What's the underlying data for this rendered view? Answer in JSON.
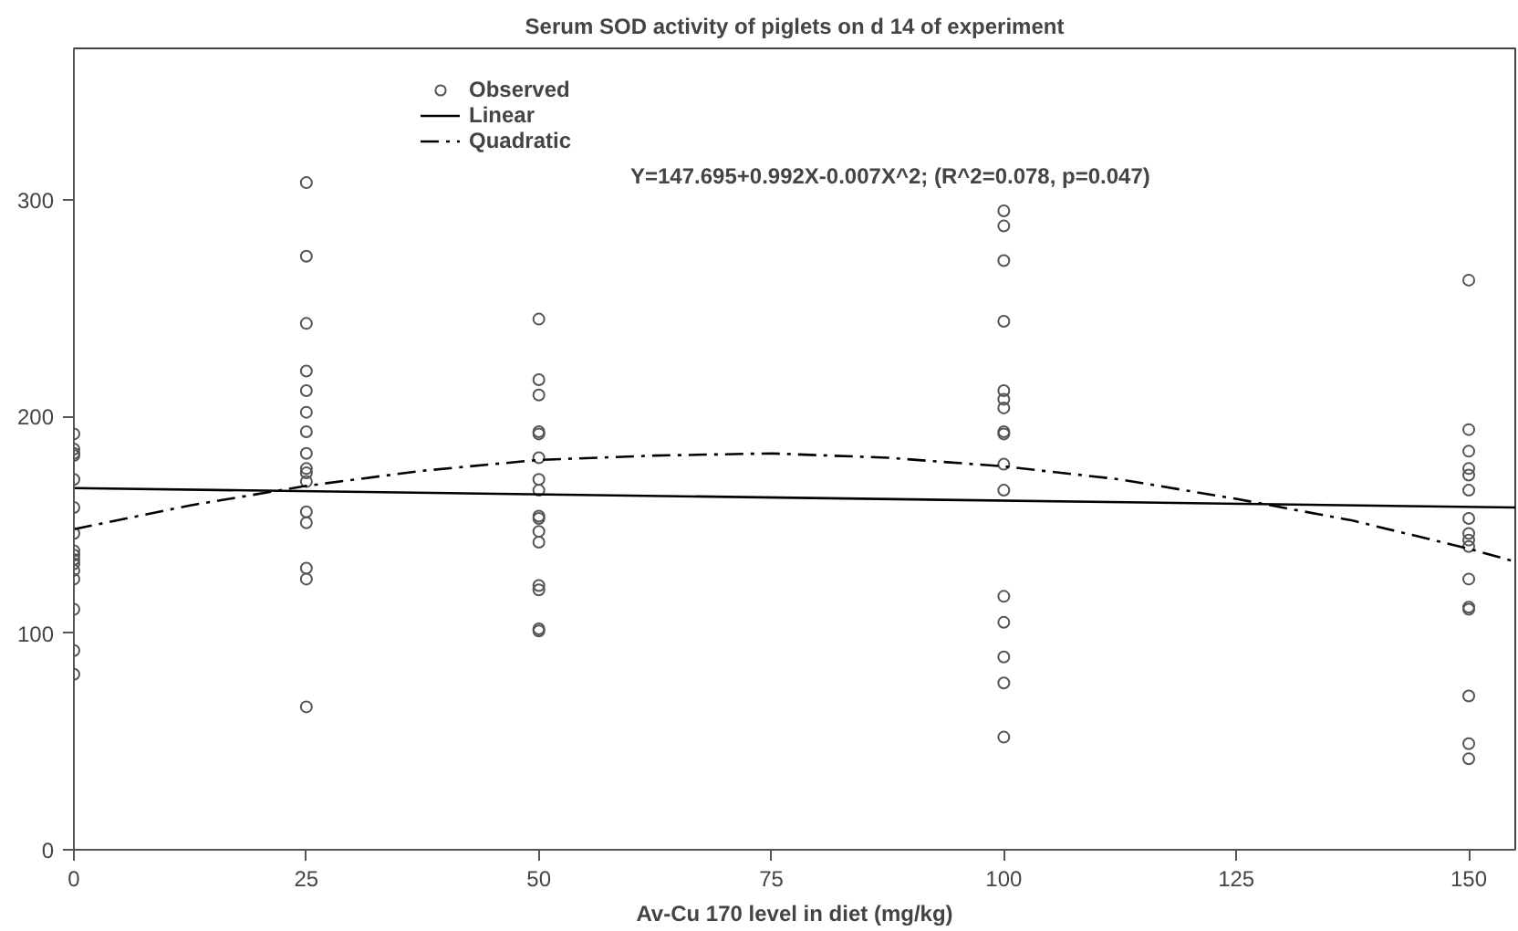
{
  "chart_data": {
    "type": "scatter",
    "title": "Serum SOD activity of piglets on d 14 of experiment",
    "xlabel": "Av-Cu 170 level in diet (mg/kg)",
    "xlim": [
      0,
      155
    ],
    "ylim": [
      0,
      370
    ],
    "xticks": [
      0,
      25,
      50,
      75,
      100,
      125,
      150
    ],
    "yticks": [
      0,
      100,
      200,
      300
    ],
    "grid": false,
    "legend": "top left",
    "annotations": [
      "Y=147.695+0.992X-0.007X^2; (R^2=0.078, p=0.047)"
    ],
    "series": [
      {
        "name": "Observed",
        "color": "#555555",
        "marker": "circle",
        "x": [
          0,
          0,
          0,
          0,
          0,
          0,
          0,
          0,
          0,
          0,
          0,
          0,
          0,
          0,
          0,
          0,
          25,
          25,
          25,
          25,
          25,
          25,
          25,
          25,
          25,
          25,
          25,
          25,
          25,
          25,
          25,
          25,
          50,
          50,
          50,
          50,
          50,
          50,
          50,
          50,
          50,
          50,
          50,
          50,
          50,
          50,
          50,
          50,
          100,
          100,
          100,
          100,
          100,
          100,
          100,
          100,
          100,
          100,
          100,
          100,
          100,
          100,
          100,
          100,
          150,
          150,
          150,
          150,
          150,
          150,
          150,
          150,
          150,
          150,
          150,
          150,
          150,
          150,
          150,
          150
        ],
        "values": [
          192,
          185,
          183,
          182,
          171,
          158,
          146,
          138,
          136,
          134,
          132,
          129,
          125,
          111,
          92,
          81,
          308,
          274,
          243,
          221,
          212,
          202,
          193,
          183,
          176,
          174,
          170,
          156,
          151,
          130,
          125,
          66,
          245,
          217,
          210,
          193,
          192,
          181,
          171,
          166,
          154,
          153,
          147,
          142,
          122,
          120,
          102,
          101,
          295,
          288,
          272,
          244,
          212,
          208,
          204,
          193,
          192,
          178,
          166,
          117,
          105,
          89,
          77,
          52,
          263,
          194,
          184,
          176,
          173,
          166,
          153,
          146,
          143,
          140,
          125,
          112,
          111,
          71,
          49,
          42
        ]
      },
      {
        "name": "Linear",
        "type": "line",
        "color": "#000000",
        "line_style": "solid",
        "x": [
          0,
          155
        ],
        "values": [
          167,
          158
        ]
      },
      {
        "name": "Quadratic",
        "type": "line",
        "color": "#000000",
        "line_style": "dashdot",
        "x": [
          0,
          12.5,
          25,
          37.5,
          50,
          62.5,
          75,
          87.5,
          100,
          112.5,
          125,
          137.5,
          150,
          155
        ],
        "values": [
          148,
          159,
          168,
          175,
          180,
          182,
          183,
          181,
          177,
          171,
          162,
          152,
          139,
          133
        ]
      }
    ]
  }
}
